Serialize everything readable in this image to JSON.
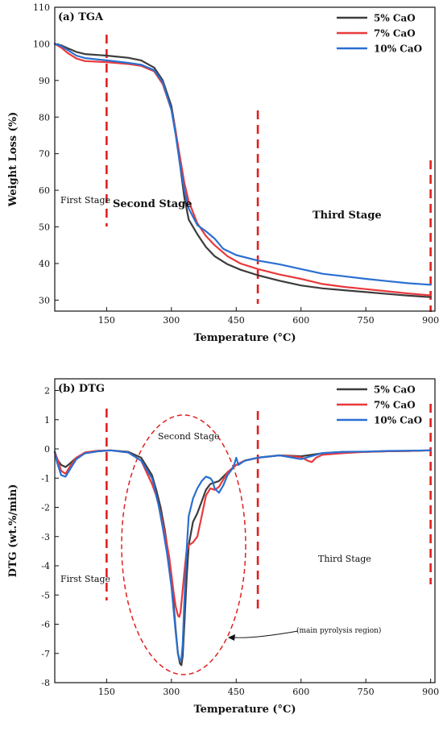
{
  "chart_data": [
    {
      "type": "line",
      "title": "(a) TGA",
      "xlabel": "Temperature (°C)",
      "ylabel": "Weight Loss (%)",
      "xlim": [
        30,
        910
      ],
      "ylim": [
        27,
        110
      ],
      "x_ticks": [
        150,
        300,
        450,
        600,
        750,
        900
      ],
      "y_ticks": [
        30,
        40,
        50,
        60,
        70,
        80,
        90,
        100,
        110
      ],
      "grid": false,
      "legend_position": "top-right",
      "series": [
        {
          "name": "5% CaO",
          "color": "#3c3c3c",
          "x": [
            30,
            45,
            60,
            80,
            100,
            150,
            200,
            230,
            260,
            280,
            300,
            310,
            320,
            330,
            340,
            360,
            380,
            400,
            430,
            460,
            500,
            550,
            600,
            650,
            700,
            750,
            800,
            850,
            900
          ],
          "y": [
            100,
            99.6,
            98.8,
            97.8,
            97.2,
            96.8,
            96.2,
            95.5,
            93.5,
            90,
            83,
            76,
            67,
            58,
            52,
            48,
            44.5,
            42,
            39.8,
            38.3,
            36.8,
            35.3,
            34,
            33.2,
            32.7,
            32.2,
            31.7,
            31.2,
            30.8
          ]
        },
        {
          "name": "7% CaO",
          "color": "#e8393b",
          "x": [
            30,
            45,
            60,
            80,
            100,
            150,
            200,
            230,
            260,
            280,
            300,
            310,
            320,
            330,
            340,
            360,
            380,
            400,
            430,
            460,
            500,
            550,
            600,
            650,
            700,
            750,
            800,
            850,
            900
          ],
          "y": [
            100,
            99,
            97.5,
            96,
            95.3,
            95,
            94.5,
            94,
            92.5,
            89,
            82,
            76,
            69,
            62,
            57,
            51,
            47.5,
            45,
            42,
            40,
            38.5,
            37,
            35.8,
            34.4,
            33.6,
            33,
            32.4,
            31.8,
            31.3
          ]
        },
        {
          "name": "10% CaO",
          "color": "#2b6fd1",
          "x": [
            30,
            45,
            60,
            80,
            100,
            150,
            200,
            230,
            260,
            280,
            300,
            310,
            320,
            330,
            340,
            360,
            380,
            400,
            420,
            450,
            500,
            550,
            600,
            650,
            700,
            750,
            800,
            850,
            900
          ],
          "y": [
            100,
            99.4,
            98.3,
            96.8,
            96.1,
            95.5,
            94.8,
            94.3,
            92.8,
            89.5,
            82,
            75,
            67,
            60,
            55,
            50.5,
            48.8,
            46.8,
            44,
            42.3,
            40.8,
            39.8,
            38.5,
            37.2,
            36.5,
            35.8,
            35.2,
            34.6,
            34.2
          ]
        }
      ],
      "stage_lines_x": [
        150,
        500,
        900
      ],
      "annotations": [
        "First Stage",
        "Second Stage",
        "Third Stage"
      ]
    },
    {
      "type": "line",
      "title": "(b) DTG",
      "xlabel": "Temperature (°C)",
      "ylabel": "DTG (wt.%/min)",
      "xlim": [
        30,
        910
      ],
      "ylim": [
        -8,
        2.4
      ],
      "x_ticks": [
        150,
        300,
        450,
        600,
        750,
        900
      ],
      "y_ticks": [
        -8,
        -7,
        -6,
        -5,
        -4,
        -3,
        -2,
        -1,
        0,
        1,
        2
      ],
      "grid": false,
      "legend_position": "top-right",
      "series": [
        {
          "name": "5% CaO",
          "color": "#3c3c3c",
          "x": [
            30,
            35,
            45,
            55,
            65,
            80,
            100,
            130,
            160,
            200,
            230,
            255,
            265,
            275,
            285,
            295,
            300,
            305,
            310,
            315,
            320,
            323,
            326,
            330,
            335,
            340,
            350,
            360,
            370,
            380,
            390,
            400,
            410,
            420,
            430,
            450,
            470,
            500,
            550,
            600,
            650,
            700,
            750,
            800,
            850,
            900
          ],
          "y": [
            -0.1,
            -0.35,
            -0.55,
            -0.62,
            -0.5,
            -0.3,
            -0.15,
            -0.08,
            -0.05,
            -0.1,
            -0.3,
            -0.9,
            -1.4,
            -2,
            -2.8,
            -3.8,
            -4.5,
            -5.3,
            -6.2,
            -7,
            -7.35,
            -7.4,
            -7.1,
            -6,
            -4.5,
            -3.3,
            -2.5,
            -2.2,
            -1.8,
            -1.4,
            -1.2,
            -1.15,
            -1.1,
            -0.95,
            -0.8,
            -0.55,
            -0.4,
            -0.3,
            -0.22,
            -0.25,
            -0.15,
            -0.1,
            -0.1,
            -0.08,
            -0.07,
            -0.05
          ]
        },
        {
          "name": "7% CaO",
          "color": "#e8393b",
          "x": [
            30,
            35,
            45,
            55,
            65,
            80,
            100,
            130,
            160,
            200,
            230,
            255,
            265,
            275,
            285,
            295,
            300,
            305,
            310,
            315,
            318,
            321,
            325,
            330,
            335,
            340,
            350,
            360,
            370,
            380,
            390,
            400,
            410,
            420,
            430,
            450,
            470,
            500,
            550,
            600,
            615,
            625,
            635,
            650,
            700,
            750,
            800,
            850,
            900
          ],
          "y": [
            -0.1,
            -0.3,
            -0.75,
            -0.85,
            -0.6,
            -0.3,
            -0.12,
            -0.06,
            -0.05,
            -0.12,
            -0.4,
            -1.2,
            -1.6,
            -2.2,
            -2.9,
            -3.7,
            -4.3,
            -4.9,
            -5.4,
            -5.7,
            -5.75,
            -5.6,
            -5,
            -4.2,
            -3.5,
            -3.3,
            -3.2,
            -3,
            -2.3,
            -1.6,
            -1.35,
            -1.4,
            -1.3,
            -1.05,
            -0.8,
            -0.55,
            -0.4,
            -0.3,
            -0.22,
            -0.28,
            -0.4,
            -0.45,
            -0.3,
            -0.2,
            -0.14,
            -0.1,
            -0.08,
            -0.07,
            -0.05
          ]
        },
        {
          "name": "10% CaO",
          "color": "#2b6fd1",
          "x": [
            30,
            35,
            45,
            55,
            65,
            80,
            100,
            130,
            160,
            200,
            230,
            255,
            260,
            265,
            270,
            280,
            290,
            300,
            305,
            310,
            315,
            320,
            323,
            326,
            330,
            335,
            340,
            350,
            360,
            370,
            380,
            390,
            395,
            400,
            410,
            420,
            430,
            440,
            445,
            450,
            455,
            470,
            500,
            550,
            600,
            650,
            700,
            750,
            800,
            850,
            900
          ],
          "y": [
            -0.1,
            -0.45,
            -0.9,
            -0.95,
            -0.7,
            -0.35,
            -0.15,
            -0.08,
            -0.05,
            -0.12,
            -0.4,
            -1.0,
            -1.25,
            -1.6,
            -1.9,
            -2.7,
            -3.6,
            -4.7,
            -5.5,
            -6.3,
            -7,
            -7.25,
            -7.2,
            -6.7,
            -5.2,
            -3.5,
            -2.3,
            -1.7,
            -1.35,
            -1.1,
            -0.95,
            -1.0,
            -1.1,
            -1.35,
            -1.5,
            -1.25,
            -0.9,
            -0.7,
            -0.55,
            -0.3,
            -0.55,
            -0.4,
            -0.3,
            -0.22,
            -0.35,
            -0.14,
            -0.1,
            -0.09,
            -0.07,
            -0.06,
            -0.05
          ]
        }
      ],
      "stage_lines_x": [
        150,
        500,
        900
      ],
      "annotations": [
        "First Stage",
        "Second Stage",
        "Third Stage",
        "(main pyrolysis region)"
      ]
    }
  ]
}
